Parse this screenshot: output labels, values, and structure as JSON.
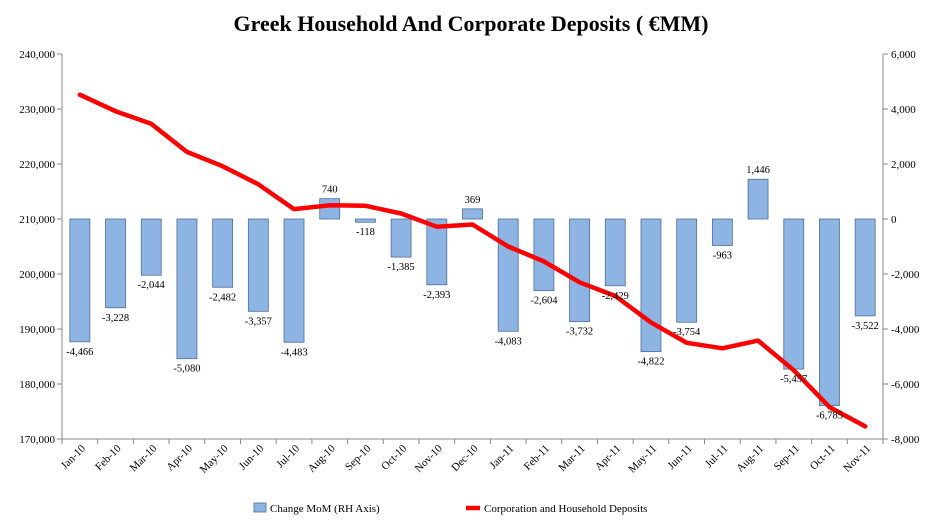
{
  "chart_data": {
    "type": "bar",
    "title": "Greek Household And Corporate Deposits ( €MM)",
    "categories": [
      "Jan-10",
      "Feb-10",
      "Mar-10",
      "Apr-10",
      "May-10",
      "Jun-10",
      "Jul-10",
      "Aug-10",
      "Sep-10",
      "Oct-10",
      "Nov-10",
      "Dec-10",
      "Jan-11",
      "Feb-11",
      "Mar-11",
      "Apr-11",
      "May-11",
      "Jun-11",
      "Jul-11",
      "Aug-11",
      "Sep-11",
      "Oct-11",
      "Nov-11"
    ],
    "series": [
      {
        "name": "Change MoM (RH Axis)",
        "kind": "bar",
        "axis": "right",
        "color": "#8EB4E3",
        "border": "#4F6F9A",
        "values": [
          -4466,
          -3228,
          -2044,
          -5080,
          -2482,
          -3357,
          -4483,
          740,
          -118,
          -1385,
          -2393,
          369,
          -4083,
          -2604,
          -3732,
          -2429,
          -4822,
          -3754,
          -963,
          1446,
          -5457,
          -6785,
          -3522
        ],
        "labels": [
          "-4,466",
          "-3,228",
          "-2,044",
          "-5,080",
          "-2,482",
          "-3,357",
          "-4,483",
          "740",
          "-118",
          "-1,385",
          "-2,393",
          "369",
          "-4,083",
          "-2,604",
          "-3,732",
          "-2,429",
          "-4,822",
          "-3,754",
          "-963",
          "1,446",
          "-5,457",
          "-6,785",
          "-3,522"
        ]
      },
      {
        "name": "Corporation and Household Deposits",
        "kind": "line",
        "axis": "left",
        "color": "#FF0000",
        "values": [
          232600,
          229600,
          227300,
          222200,
          219600,
          216300,
          211800,
          212500,
          212400,
          211000,
          208600,
          209000,
          205000,
          202300,
          198500,
          196000,
          191200,
          187500,
          186500,
          187900,
          182500,
          175800,
          172300
        ]
      }
    ],
    "left_axis": {
      "min": 170000,
      "max": 240000,
      "step": 10000,
      "tick_labels": [
        "170,000",
        "180,000",
        "190,000",
        "200,000",
        "210,000",
        "220,000",
        "230,000",
        "240,000"
      ]
    },
    "right_axis": {
      "min": -8000,
      "max": 6000,
      "step": 2000,
      "tick_labels": [
        "-8,000",
        "-6,000",
        "-4,000",
        "-2,000",
        "0",
        "2,000",
        "4,000",
        "6,000"
      ]
    },
    "legend": {
      "position": "bottom",
      "items": [
        "Change MoM (RH Axis)",
        "Corporation and Household Deposits"
      ]
    }
  }
}
